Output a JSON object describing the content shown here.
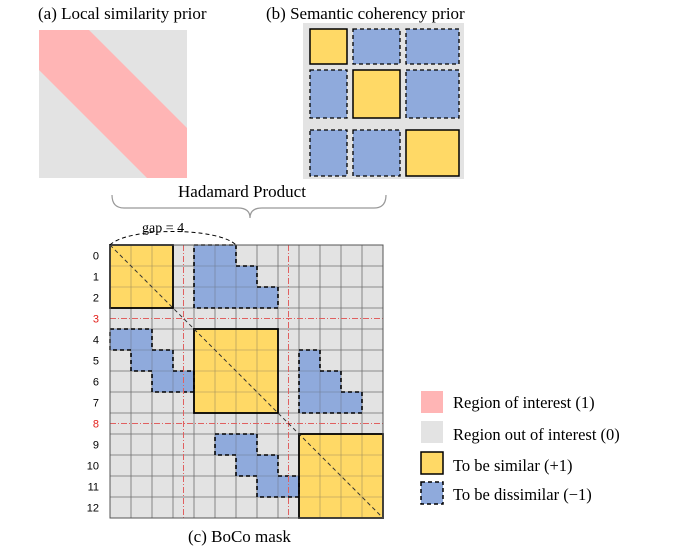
{
  "panels": {
    "local_title": "(a) Local similarity prior",
    "semantic_title": "(b) Semantic coherency prior",
    "hadamard_label": "Hadamard Product",
    "mask_title": "(c) BoCo mask"
  },
  "mask": {
    "gap_label": "gap = 4",
    "row_labels": [
      "0",
      "1",
      "2",
      "3",
      "4",
      "5",
      "6",
      "7",
      "8",
      "9",
      "10",
      "11",
      "12"
    ],
    "boundary_rows": [
      3,
      8
    ],
    "groups": [
      [
        0,
        1,
        2
      ],
      [
        4,
        5,
        6,
        7
      ],
      [
        9,
        10,
        11,
        12
      ]
    ]
  },
  "legend": {
    "items": [
      {
        "label": "Region of interest (1)"
      },
      {
        "label": "Region out of interest (0)"
      },
      {
        "label": "To be similar (+1)"
      },
      {
        "label": "To be dissimilar (−1)"
      }
    ]
  },
  "colors": {
    "roi": "#ffb5b5",
    "out": "#e3e3e3",
    "similar": "#ffd966",
    "dissimilar": "#8faadc",
    "boundary_label": "#e3201b",
    "boundary_line": "#e06060"
  }
}
